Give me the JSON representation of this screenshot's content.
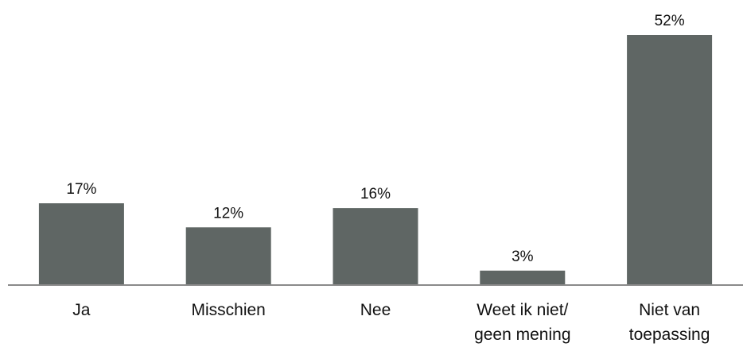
{
  "chart_data": {
    "type": "bar",
    "categories": [
      "Ja",
      "Misschien",
      "Nee",
      "Weet ik niet/ geen mening",
      "Niet van toepassing"
    ],
    "values": [
      17,
      12,
      16,
      3,
      52
    ],
    "data_labels": [
      "17%",
      "12%",
      "16%",
      "3%",
      "52%"
    ],
    "title": "",
    "xlabel": "",
    "ylabel": "",
    "ylim": [
      0,
      52
    ],
    "grid": false,
    "legend": "none",
    "bar_color": "#5f6664",
    "axis_color": "#8a8a8a"
  }
}
